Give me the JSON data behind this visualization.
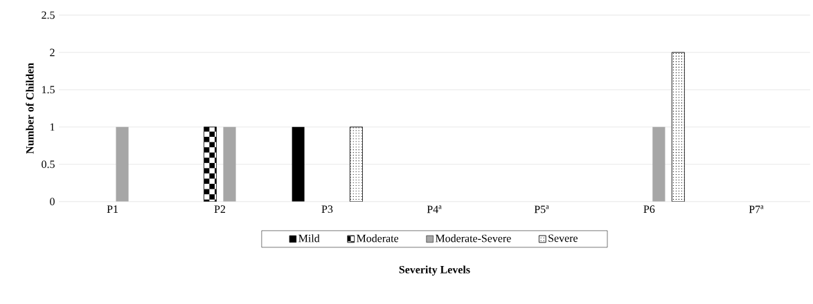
{
  "chart_data": {
    "type": "bar",
    "xlabel": "Severity Levels",
    "ylabel": "Number of Childen",
    "categories": [
      "P1",
      "P2",
      "P3",
      "P4$^{a}$",
      "P5$^{a}$",
      "P6",
      "P7$^{a}$"
    ],
    "series": [
      {
        "name": "Mild",
        "color": "#000000",
        "values": [
          0,
          0,
          1,
          0,
          0,
          0,
          0
        ]
      },
      {
        "name": "Moderate",
        "color": "#000000",
        "values": [
          0,
          1,
          0,
          0,
          0,
          0,
          0
        ]
      },
      {
        "name": "Moderate-Severe",
        "color": "#a6a6a6",
        "values": [
          1,
          1,
          0,
          0,
          0,
          1,
          0
        ]
      },
      {
        "name": "Severe",
        "color": "#000000",
        "values": [
          0,
          0,
          1,
          0,
          0,
          2,
          0
        ]
      }
    ],
    "ylim": [
      0,
      2.5
    ],
    "yticks": [
      0,
      0.5,
      1,
      1.5,
      2,
      2.5
    ],
    "grid": "y",
    "legend": "bottom"
  }
}
